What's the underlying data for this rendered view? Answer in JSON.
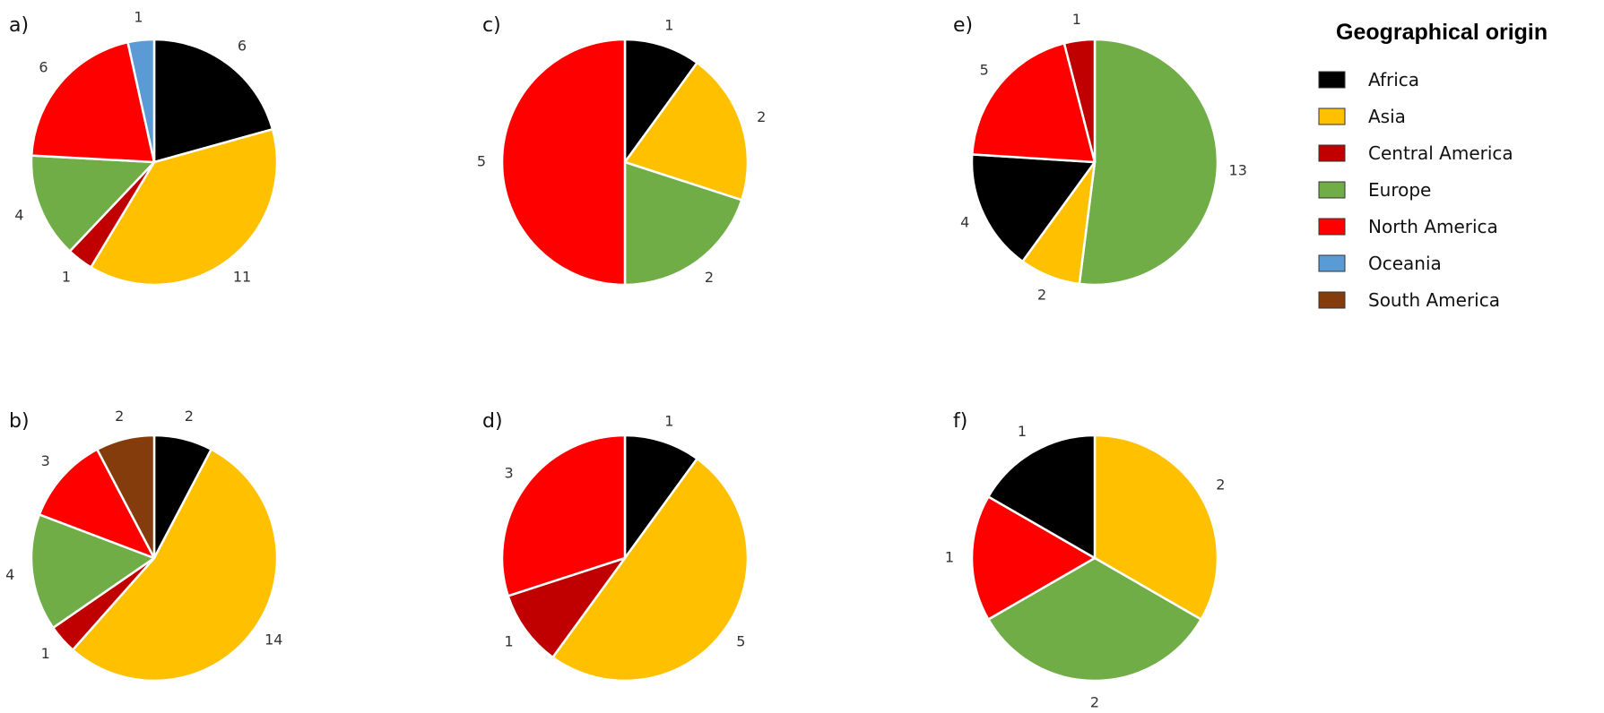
{
  "legend": {
    "title": "Geographical origin",
    "items": [
      {
        "label": "Africa",
        "color": "#000000"
      },
      {
        "label": "Asia",
        "color": "#FFC000"
      },
      {
        "label": "Central America",
        "color": "#C00000"
      },
      {
        "label": "Europe",
        "color": "#70AD47"
      },
      {
        "label": "North America",
        "color": "#FF0000"
      },
      {
        "label": "Oceania",
        "color": "#5B9BD5"
      },
      {
        "label": "South America",
        "color": "#843C0C"
      }
    ]
  },
  "chart_data": [
    {
      "type": "pie",
      "panel": "a)",
      "categories": [
        "Africa",
        "Asia",
        "Central America",
        "Europe",
        "North America",
        "Oceania"
      ],
      "values": [
        6,
        11,
        1,
        4,
        6,
        1
      ]
    },
    {
      "type": "pie",
      "panel": "b)",
      "categories": [
        "Africa",
        "Asia",
        "Central America",
        "Europe",
        "North America",
        "South America"
      ],
      "values": [
        2,
        14,
        1,
        4,
        3,
        2
      ]
    },
    {
      "type": "pie",
      "panel": "c)",
      "categories": [
        "Africa",
        "Asia",
        "Europe",
        "North America"
      ],
      "values": [
        1,
        2,
        2,
        5
      ]
    },
    {
      "type": "pie",
      "panel": "d)",
      "categories": [
        "Africa",
        "Asia",
        "Central America",
        "North America"
      ],
      "values": [
        1,
        5,
        1,
        3
      ]
    },
    {
      "type": "pie",
      "panel": "e)",
      "categories": [
        "Europe",
        "Asia",
        "Africa",
        "North America",
        "Central America"
      ],
      "values": [
        13,
        2,
        4,
        5,
        1
      ]
    },
    {
      "type": "pie",
      "panel": "f)",
      "categories": [
        "Asia",
        "Europe",
        "North America",
        "Africa"
      ],
      "values": [
        2,
        2,
        1,
        1
      ]
    }
  ]
}
